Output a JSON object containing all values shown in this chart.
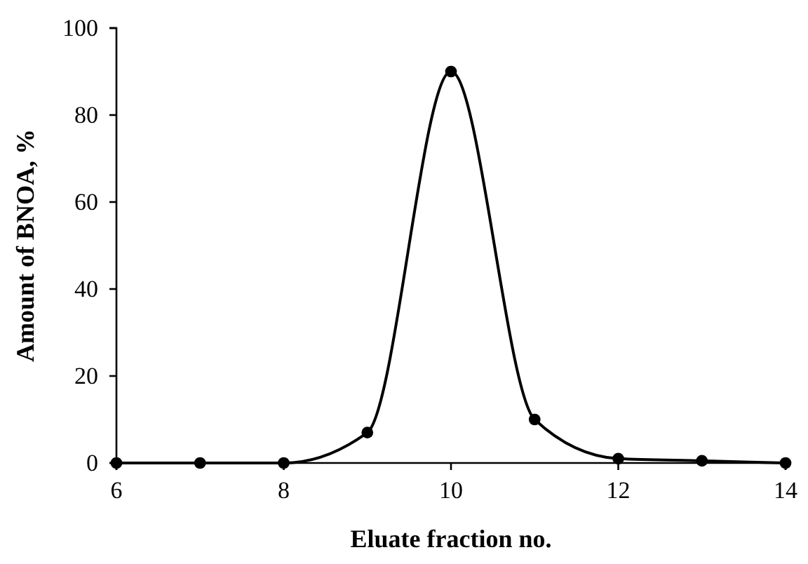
{
  "chart_data": {
    "type": "line",
    "xlabel": "Eluate fraction no.",
    "ylabel": "Amount of BNOA, %",
    "x": [
      6,
      7,
      8,
      9,
      10,
      11,
      12,
      13,
      14
    ],
    "series": [
      {
        "color": "#000000",
        "values": [
          0,
          0,
          0,
          7,
          90,
          10,
          1,
          0.5,
          0
        ]
      }
    ],
    "xlim": [
      6,
      14
    ],
    "xticks": [
      6,
      8,
      10,
      12,
      14
    ],
    "ylim": [
      0,
      100
    ],
    "yticks": [
      0,
      20,
      40,
      60,
      80,
      100
    ],
    "marker": "circle",
    "line_style": "solid",
    "grid": false
  }
}
